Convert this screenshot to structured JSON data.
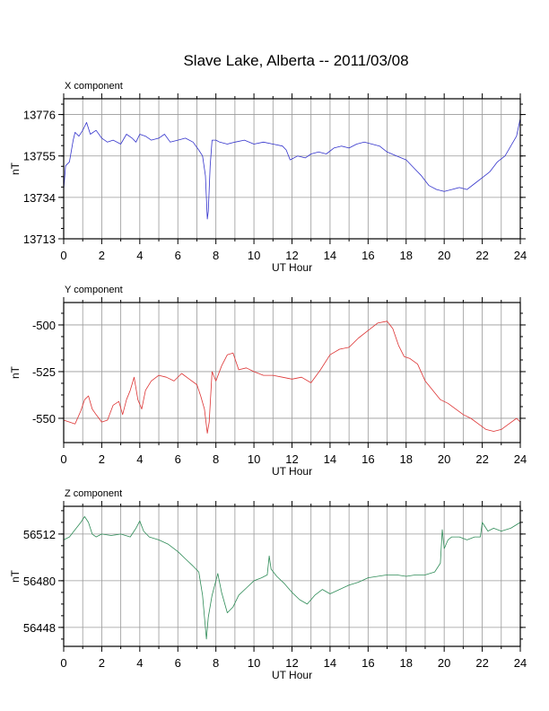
{
  "title": "Slave Lake, Alberta -- 2011/03/08",
  "chart_data": [
    {
      "type": "line",
      "panel_title": "X component",
      "xlabel": "UT Hour",
      "ylabel": "nT",
      "xlim": [
        0,
        24
      ],
      "ylim": [
        13713,
        13784
      ],
      "xticks": [
        0,
        2,
        4,
        6,
        8,
        10,
        12,
        14,
        16,
        18,
        20,
        22,
        24
      ],
      "yticks": [
        13713,
        13734,
        13755,
        13776
      ],
      "color": "#3333cc",
      "series": [
        {
          "x": [
            0,
            0.1,
            0.3,
            0.5,
            0.6,
            0.8,
            1.0,
            1.2,
            1.4,
            1.7,
            2.0,
            2.3,
            2.6,
            3.0,
            3.3,
            3.6,
            3.8,
            4.0,
            4.3,
            4.6,
            5.0,
            5.3,
            5.6,
            6.0,
            6.4,
            6.8,
            7.1,
            7.3,
            7.45,
            7.55,
            7.6,
            7.7,
            7.8,
            8.0,
            8.2,
            8.6,
            9.0,
            9.5,
            10.0,
            10.5,
            11.0,
            11.5,
            11.7,
            11.9,
            12.3,
            12.7,
            13.0,
            13.4,
            13.8,
            14.2,
            14.6,
            15.0,
            15.4,
            15.8,
            16.2,
            16.6,
            17.0,
            17.5,
            18.0,
            18.4,
            18.8,
            19.2,
            19.6,
            20.0,
            20.4,
            20.8,
            21.2,
            21.6,
            22.0,
            22.4,
            22.8,
            23.2,
            23.5,
            23.8,
            24.0
          ],
          "y": [
            13738,
            13750,
            13752,
            13763,
            13767,
            13765,
            13768,
            13772,
            13766,
            13768,
            13764,
            13762,
            13763,
            13761,
            13766,
            13764,
            13762,
            13766,
            13765,
            13763,
            13764,
            13766,
            13762,
            13763,
            13764,
            13762,
            13758,
            13755,
            13745,
            13723,
            13727,
            13750,
            13763,
            13763,
            13762,
            13761,
            13762,
            13763,
            13761,
            13762,
            13761,
            13760,
            13758,
            13753,
            13755,
            13754,
            13756,
            13757,
            13756,
            13759,
            13760,
            13759,
            13761,
            13762,
            13761,
            13760,
            13757,
            13755,
            13753,
            13749,
            13745,
            13740,
            13738,
            13737,
            13738,
            13739,
            13738,
            13741,
            13744,
            13747,
            13752,
            13755,
            13760,
            13765,
            13774
          ]
        }
      ]
    },
    {
      "type": "line",
      "panel_title": "Y component",
      "xlabel": "UT Hour",
      "ylabel": "nT",
      "xlim": [
        0,
        24
      ],
      "ylim": [
        -563,
        -488
      ],
      "xticks": [
        0,
        2,
        4,
        6,
        8,
        10,
        12,
        14,
        16,
        18,
        20,
        22,
        24
      ],
      "yticks": [
        -500,
        -525,
        -550
      ],
      "color": "#dd3333",
      "series": [
        {
          "x": [
            0,
            0.3,
            0.6,
            0.9,
            1.1,
            1.3,
            1.5,
            1.7,
            2.0,
            2.3,
            2.6,
            2.9,
            3.1,
            3.3,
            3.5,
            3.7,
            3.9,
            4.1,
            4.3,
            4.6,
            5.0,
            5.4,
            5.8,
            6.2,
            6.6,
            7.0,
            7.2,
            7.4,
            7.55,
            7.65,
            7.8,
            8.0,
            8.3,
            8.6,
            8.9,
            9.2,
            9.6,
            10.0,
            10.5,
            11.0,
            11.5,
            12.0,
            12.5,
            13.0,
            13.5,
            14.0,
            14.5,
            15.0,
            15.5,
            16.0,
            16.5,
            17.0,
            17.3,
            17.6,
            17.9,
            18.2,
            18.6,
            19.0,
            19.4,
            19.8,
            20.2,
            20.6,
            21.0,
            21.4,
            21.8,
            22.2,
            22.6,
            23.0,
            23.4,
            23.8,
            24.0
          ],
          "y": [
            -551,
            -552,
            -553,
            -546,
            -540,
            -538,
            -545,
            -548,
            -552,
            -551,
            -543,
            -541,
            -548,
            -540,
            -535,
            -528,
            -540,
            -545,
            -535,
            -530,
            -527,
            -528,
            -530,
            -526,
            -529,
            -532,
            -538,
            -545,
            -558,
            -552,
            -525,
            -530,
            -522,
            -516,
            -515,
            -524,
            -523,
            -525,
            -527,
            -527,
            -528,
            -529,
            -528,
            -531,
            -524,
            -516,
            -513,
            -512,
            -507,
            -503,
            -499,
            -498,
            -502,
            -511,
            -517,
            -518,
            -521,
            -530,
            -535,
            -540,
            -542,
            -545,
            -548,
            -550,
            -553,
            -556,
            -557,
            -556,
            -553,
            -550,
            -552
          ]
        }
      ]
    },
    {
      "type": "line",
      "panel_title": "Z component",
      "xlabel": "UT Hour",
      "ylabel": "nT",
      "xlim": [
        0,
        24
      ],
      "ylim": [
        56435,
        56531
      ],
      "xticks": [
        0,
        2,
        4,
        6,
        8,
        10,
        12,
        14,
        16,
        18,
        20,
        22,
        24
      ],
      "yticks": [
        56448,
        56480,
        56512
      ],
      "color": "#2e8b57",
      "series": [
        {
          "x": [
            0,
            0.3,
            0.6,
            0.9,
            1.1,
            1.3,
            1.5,
            1.7,
            2.0,
            2.5,
            3.0,
            3.5,
            3.8,
            4.0,
            4.2,
            4.5,
            5.0,
            5.5,
            6.0,
            6.4,
            6.8,
            7.1,
            7.3,
            7.5,
            7.6,
            7.8,
            8.1,
            8.3,
            8.6,
            8.9,
            9.2,
            9.6,
            10.0,
            10.4,
            10.7,
            10.8,
            10.9,
            11.2,
            11.6,
            12.0,
            12.4,
            12.8,
            13.2,
            13.6,
            14.0,
            14.5,
            15.0,
            15.5,
            16.0,
            16.5,
            17.0,
            17.5,
            18.0,
            18.5,
            19.0,
            19.5,
            19.8,
            19.9,
            20.0,
            20.2,
            20.4,
            20.8,
            21.2,
            21.6,
            21.9,
            22.0,
            22.3,
            22.6,
            23.0,
            23.5,
            24.0
          ],
          "y": [
            56508,
            56510,
            56515,
            56520,
            56524,
            56520,
            56512,
            56510,
            56512,
            56511,
            56512,
            56510,
            56516,
            56521,
            56514,
            56510,
            56508,
            56505,
            56500,
            56495,
            56490,
            56486,
            56470,
            56440,
            56455,
            56470,
            56485,
            56472,
            56458,
            56462,
            56470,
            56475,
            56480,
            56482,
            56484,
            56497,
            56488,
            56483,
            56478,
            56472,
            56467,
            56464,
            56470,
            56474,
            56471,
            56474,
            56477,
            56479,
            56482,
            56483,
            56484,
            56484,
            56483,
            56484,
            56484,
            56486,
            56492,
            56515,
            56502,
            56508,
            56510,
            56510,
            56508,
            56510,
            56510,
            56520,
            56514,
            56516,
            56514,
            56516,
            56520
          ]
        }
      ]
    }
  ]
}
